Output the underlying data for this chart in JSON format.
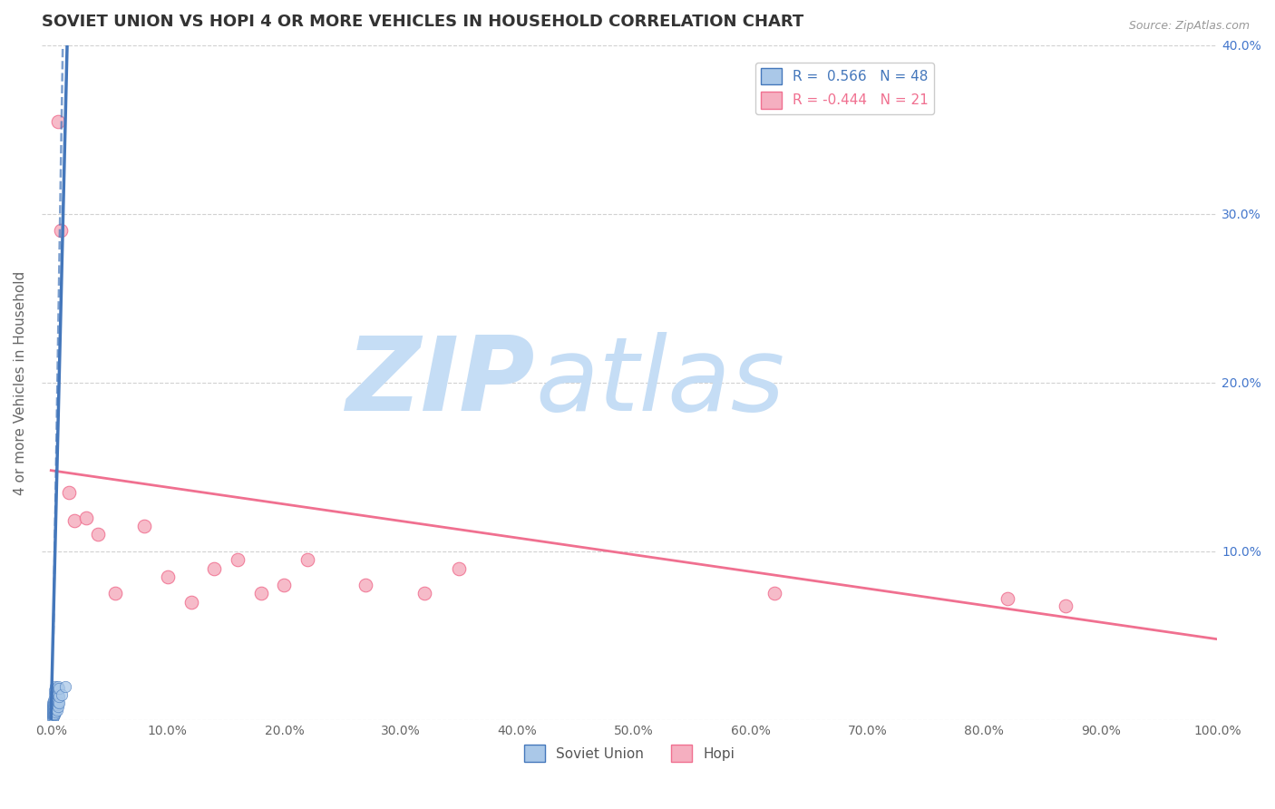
{
  "title": "SOVIET UNION VS HOPI 4 OR MORE VEHICLES IN HOUSEHOLD CORRELATION CHART",
  "source_text": "Source: ZipAtlas.com",
  "ylabel": "4 or more Vehicles in Household",
  "xlim": [
    0.0,
    1.0
  ],
  "ylim": [
    0.0,
    0.4
  ],
  "xticks": [
    0.0,
    0.1,
    0.2,
    0.3,
    0.4,
    0.5,
    0.6,
    0.7,
    0.8,
    0.9,
    1.0
  ],
  "yticks": [
    0.0,
    0.1,
    0.2,
    0.3,
    0.4
  ],
  "xtick_labels": [
    "0.0%",
    "10.0%",
    "20.0%",
    "30.0%",
    "40.0%",
    "50.0%",
    "60.0%",
    "70.0%",
    "80.0%",
    "90.0%",
    "100.0%"
  ],
  "right_ytick_labels": [
    "",
    "10.0%",
    "20.0%",
    "30.0%",
    "40.0%"
  ],
  "soviet_R": 0.566,
  "soviet_N": 48,
  "hopi_R": -0.444,
  "hopi_N": 21,
  "soviet_color": "#aac8e8",
  "hopi_color": "#f5afc0",
  "soviet_line_color": "#4477bb",
  "hopi_line_color": "#f07090",
  "watermark_zip": "ZIP",
  "watermark_atlas": "atlas",
  "watermark_color": "#c5ddf5",
  "background_color": "#ffffff",
  "soviet_x": [
    0.001,
    0.001,
    0.001,
    0.001,
    0.001,
    0.001,
    0.001,
    0.001,
    0.001,
    0.001,
    0.002,
    0.002,
    0.002,
    0.002,
    0.002,
    0.002,
    0.002,
    0.002,
    0.002,
    0.002,
    0.003,
    0.003,
    0.003,
    0.003,
    0.003,
    0.003,
    0.003,
    0.003,
    0.004,
    0.004,
    0.004,
    0.004,
    0.004,
    0.004,
    0.005,
    0.005,
    0.005,
    0.005,
    0.005,
    0.006,
    0.006,
    0.006,
    0.006,
    0.007,
    0.007,
    0.007,
    0.009,
    0.012
  ],
  "soviet_y": [
    0.001,
    0.002,
    0.003,
    0.004,
    0.005,
    0.006,
    0.007,
    0.008,
    0.009,
    0.01,
    0.002,
    0.003,
    0.004,
    0.005,
    0.006,
    0.007,
    0.008,
    0.009,
    0.01,
    0.012,
    0.003,
    0.004,
    0.006,
    0.008,
    0.01,
    0.012,
    0.015,
    0.018,
    0.005,
    0.007,
    0.01,
    0.013,
    0.016,
    0.02,
    0.006,
    0.009,
    0.012,
    0.015,
    0.019,
    0.008,
    0.011,
    0.015,
    0.02,
    0.01,
    0.014,
    0.019,
    0.015,
    0.02
  ],
  "hopi_x": [
    0.006,
    0.008,
    0.015,
    0.02,
    0.03,
    0.04,
    0.055,
    0.08,
    0.1,
    0.12,
    0.14,
    0.16,
    0.18,
    0.2,
    0.22,
    0.27,
    0.32,
    0.35,
    0.62,
    0.82,
    0.87
  ],
  "hopi_y": [
    0.355,
    0.29,
    0.135,
    0.118,
    0.12,
    0.11,
    0.075,
    0.115,
    0.085,
    0.07,
    0.09,
    0.095,
    0.075,
    0.08,
    0.095,
    0.08,
    0.075,
    0.09,
    0.075,
    0.072,
    0.068
  ],
  "hopi_trend_x0": 0.0,
  "hopi_trend_y0": 0.148,
  "hopi_trend_x1": 1.0,
  "hopi_trend_y1": 0.048,
  "soviet_trend_x0": 0.0,
  "soviet_trend_y0": 0.001,
  "soviet_trend_x1": 0.014,
  "soviet_trend_y1": 0.405
}
